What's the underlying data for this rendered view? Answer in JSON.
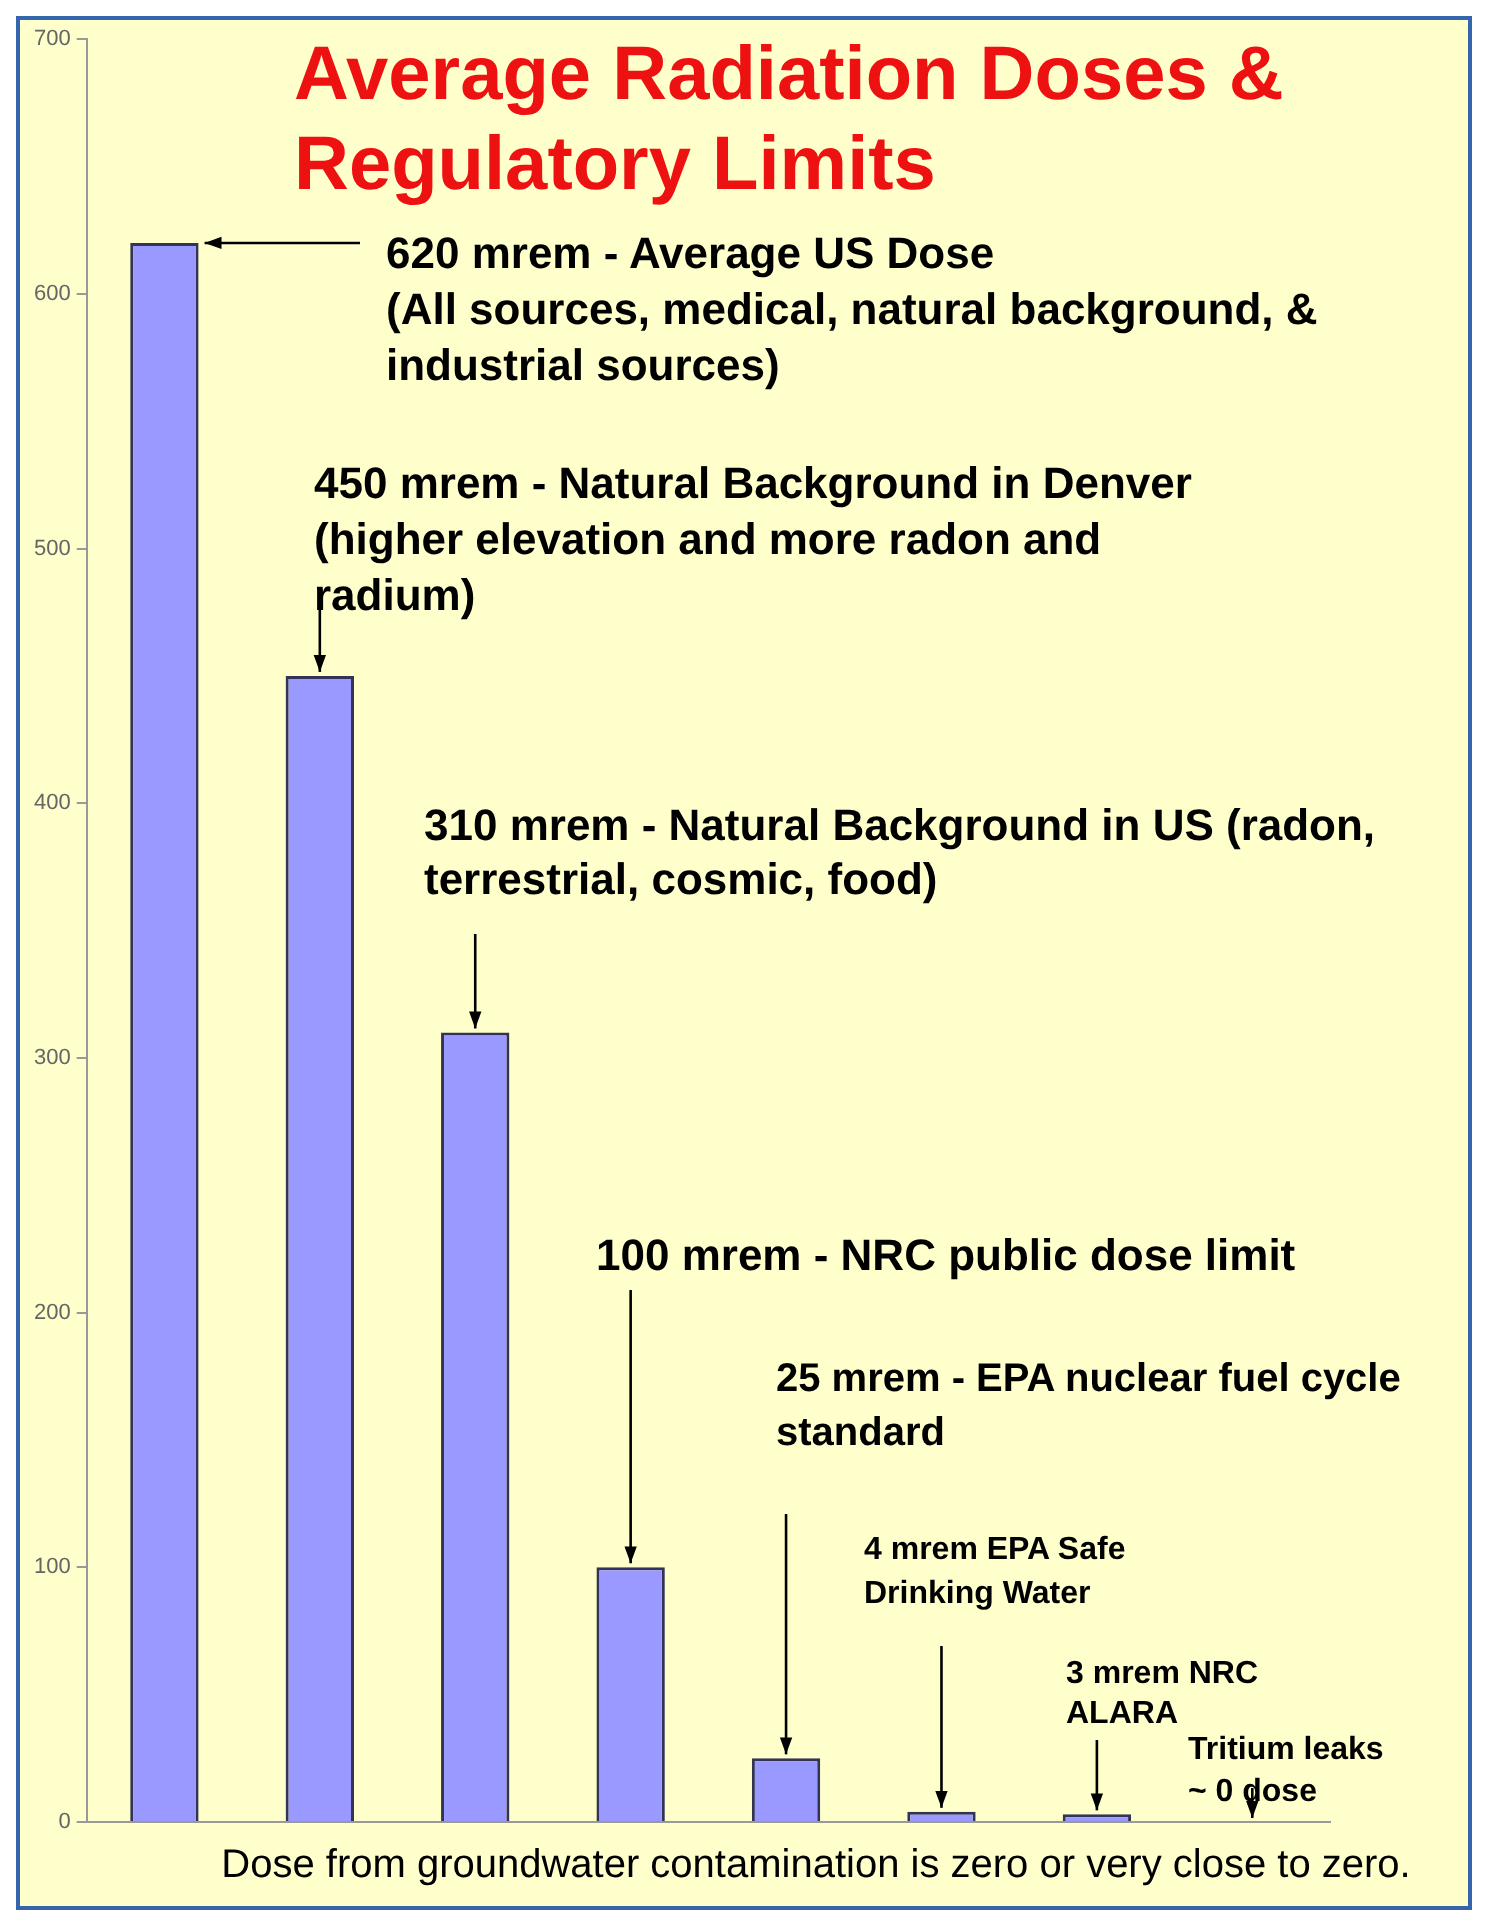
{
  "chart_data": {
    "type": "bar",
    "title": "Average Radiation Doses & Regulatory Limits",
    "categories": [
      null,
      null,
      null,
      null,
      null,
      null,
      null,
      null
    ],
    "values": [
      620,
      450,
      310,
      100,
      25,
      4,
      3,
      0
    ],
    "color": "#9999ff",
    "ylim": [
      0,
      700
    ],
    "yticks": [
      0,
      100,
      200,
      300,
      400,
      500,
      600,
      700
    ],
    "annotations": [
      "620 mrem - Average US Dose (All sources, medical, natural background, & industrial sources)",
      "450 mrem - Natural Background in Denver (higher elevation and more radon and radium)",
      "310 mrem - Natural Background in US (radon, terrestrial, cosmic, food)",
      "100 mrem - NRC public dose limit",
      "25 mrem - EPA nuclear fuel cycle standard",
      "4 mrem EPA Safe Drinking Water",
      "3 mrem NRC ALARA",
      "Tritium leaks ~ 0 dose",
      "Dose from groundwater contamination is zero or very close to zero."
    ]
  }
}
